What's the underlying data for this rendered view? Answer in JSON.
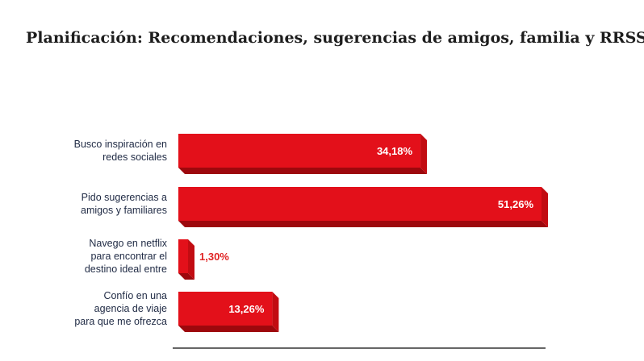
{
  "title": "Planificación: Recomendaciones, sugerencias de amigos, familia y RRSS.",
  "colors": {
    "bar_front": "#e3101a",
    "bar_side": "#c20c12",
    "bar_bottom": "#9d080d",
    "baseline": "#333333"
  },
  "chart_data": {
    "type": "bar",
    "orientation": "horizontal",
    "title": "Planificación: Recomendaciones, sugerencias de amigos, familia y RRSS.",
    "categories": [
      [
        "Busco inspiración en",
        "redes sociales"
      ],
      [
        "Pido sugerencias a",
        "amigos y familiares"
      ],
      [
        "Navego en netflix",
        "para encontrar el",
        "destino ideal entre"
      ],
      [
        "Confío en una",
        "agencia de viaje",
        "para que me ofrezca"
      ]
    ],
    "values": [
      34.18,
      51.26,
      1.3,
      13.26
    ],
    "value_labels": [
      "34,18%",
      "51,26%",
      "1,30%",
      "13,26%"
    ],
    "xlim": [
      0,
      51.26
    ],
    "grid": false,
    "legend": "none"
  }
}
